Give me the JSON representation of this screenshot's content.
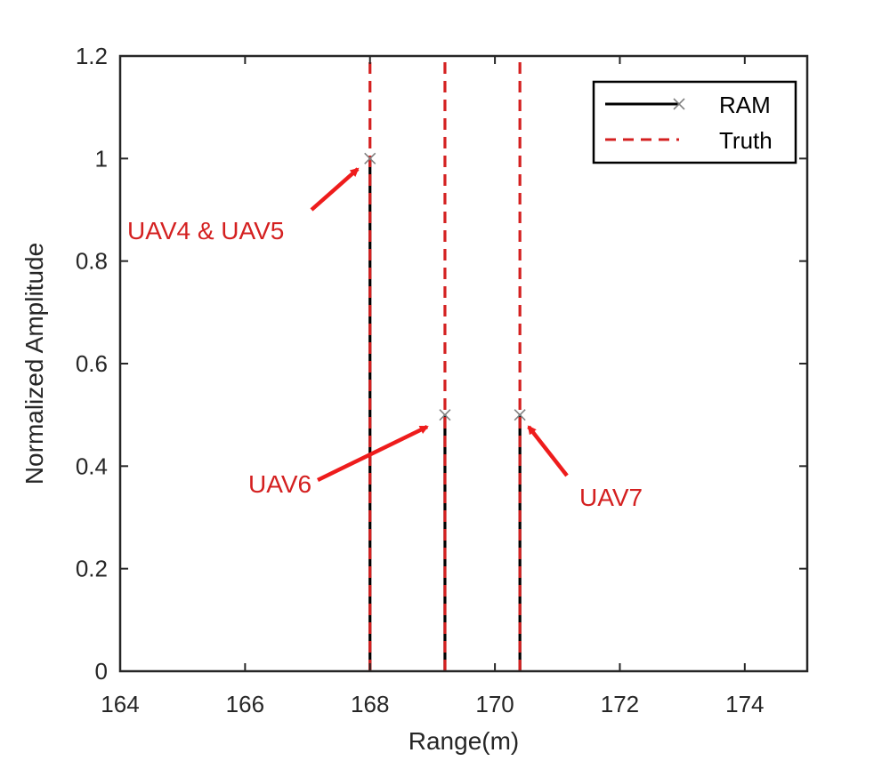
{
  "chart_data": {
    "type": "stem",
    "xlabel": "Range(m)",
    "ylabel": "Normalized Amplitude",
    "xlim": [
      164,
      175
    ],
    "ylim": [
      0,
      1.2
    ],
    "x_ticks": [
      164,
      166,
      168,
      170,
      172,
      174
    ],
    "x_tick_labels": [
      "164",
      "166",
      "168",
      "170",
      "172",
      "174"
    ],
    "y_ticks": [
      0,
      0.2,
      0.4,
      0.6,
      0.8,
      1,
      1.2
    ],
    "y_tick_labels": [
      "0",
      "0.2",
      "0.4",
      "0.6",
      "0.8",
      "1",
      "1.2"
    ],
    "grid": false,
    "legend_position": "top-right",
    "series": [
      {
        "name": "RAM",
        "style": "solid-with-x-markers",
        "color": "#000000",
        "x": [
          168.0,
          169.2,
          170.4
        ],
        "y": [
          1.0,
          0.5,
          0.5
        ]
      },
      {
        "name": "Truth",
        "style": "dashed",
        "color": "#d42020",
        "x": [
          168.0,
          169.2,
          170.4
        ],
        "y": [
          1.2,
          1.2,
          1.2
        ]
      }
    ],
    "annotations": [
      {
        "text": "UAV4 & UAV5",
        "target_x": 168.0,
        "target_y": 1.0,
        "color": "#d42020"
      },
      {
        "text": "UAV6",
        "target_x": 169.2,
        "target_y": 0.5,
        "color": "#d42020"
      },
      {
        "text": "UAV7",
        "target_x": 170.4,
        "target_y": 0.5,
        "color": "#d42020"
      }
    ]
  }
}
